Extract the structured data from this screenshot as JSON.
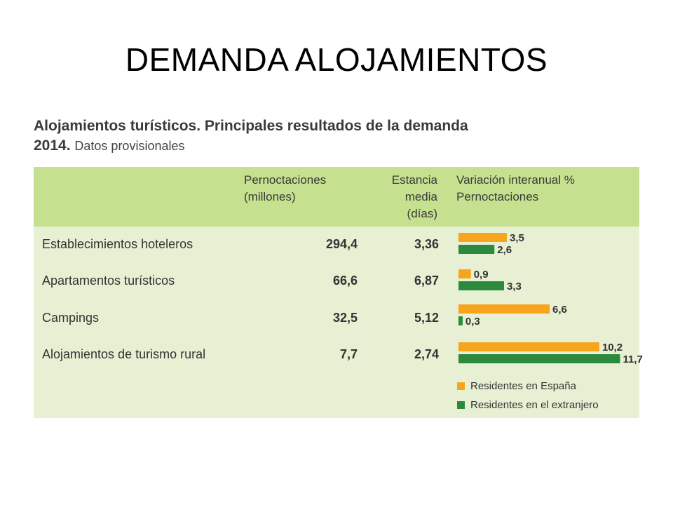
{
  "slide": {
    "title": "DEMANDA ALOJAMIENTOS"
  },
  "figure": {
    "title_line1": "Alojamientos turísticos. Principales resultados de la demanda",
    "title_year": "2014.",
    "title_sub": "Datos provisionales"
  },
  "colors": {
    "espana": "#f7a51d",
    "extranjero": "#2c8a3e",
    "header_bg": "#c5e08e",
    "body_bg": "#e8f0d3"
  },
  "chart_data": {
    "type": "table",
    "columns": [
      {
        "line1": "Pernoctaciones",
        "line2": "(millones)"
      },
      {
        "line1": "Estancia",
        "line2": "media",
        "line3": "(días)"
      },
      {
        "line1": "Variación interanual %",
        "line2": "Pernoctaciones"
      }
    ],
    "rows": [
      {
        "name": "Establecimientos hoteleros",
        "pernoctaciones": "294,4",
        "estancia": "3,36",
        "var_espana": 3.5,
        "var_espana_label": "3,5",
        "var_extranjero": 2.6,
        "var_extranjero_label": "2,6"
      },
      {
        "name": "Apartamentos turísticos",
        "pernoctaciones": "66,6",
        "estancia": "6,87",
        "var_espana": 0.9,
        "var_espana_label": "0,9",
        "var_extranjero": 3.3,
        "var_extranjero_label": "3,3"
      },
      {
        "name": "Campings",
        "pernoctaciones": "32,5",
        "estancia": "5,12",
        "var_espana": 6.6,
        "var_espana_label": "6,6",
        "var_extranjero": 0.3,
        "var_extranjero_label": "0,3"
      },
      {
        "name": "Alojamientos de turismo rural",
        "pernoctaciones": "7,7",
        "estancia": "2,74",
        "var_espana": 10.2,
        "var_espana_label": "10,2",
        "var_extranjero": 11.7,
        "var_extranjero_label": "11,7"
      }
    ],
    "series": [
      {
        "name": "Residentes en España"
      },
      {
        "name": "Residentes en el extranjero"
      }
    ]
  }
}
